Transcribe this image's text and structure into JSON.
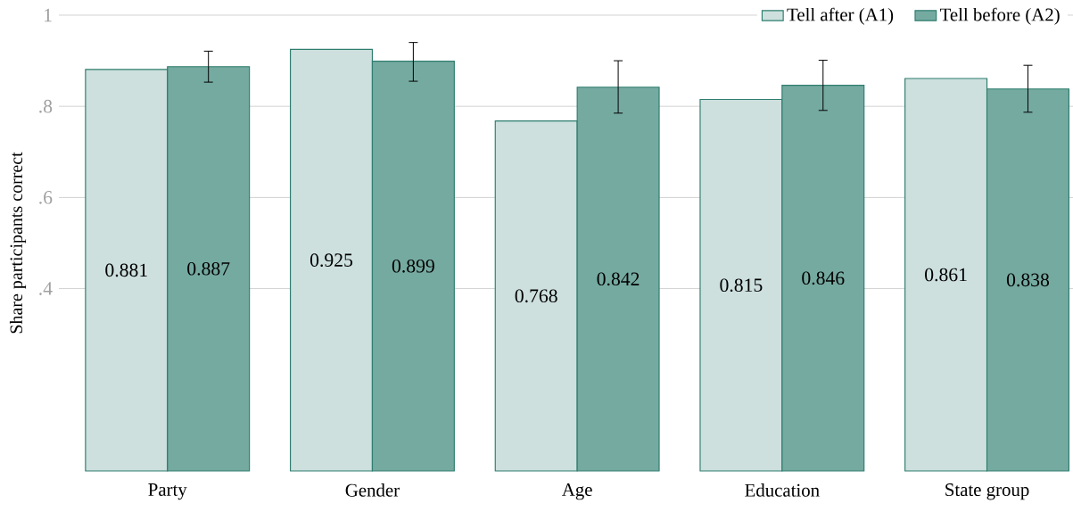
{
  "chart_data": {
    "type": "bar",
    "ylabel": "Share participants correct",
    "categories": [
      "Party",
      "Gender",
      "Age",
      "Education",
      "State group"
    ],
    "series": [
      {
        "name": "Tell after (A1)",
        "color": "#cde0de",
        "values": [
          0.881,
          0.925,
          0.768,
          0.815,
          0.861
        ],
        "value_labels": [
          "0.881",
          "0.925",
          "0.768",
          "0.815",
          "0.861"
        ]
      },
      {
        "name": "Tell before (A2)",
        "color": "#75aaa1",
        "values": [
          0.887,
          0.899,
          0.842,
          0.846,
          0.838
        ],
        "value_labels": [
          "0.887",
          "0.899",
          "0.842",
          "0.846",
          "0.838"
        ],
        "errors": [
          [
            0.853,
            0.921
          ],
          [
            0.855,
            0.94
          ],
          [
            0.785,
            0.9
          ],
          [
            0.791,
            0.901
          ],
          [
            0.787,
            0.89
          ]
        ]
      }
    ],
    "ylim": [
      0,
      1
    ],
    "yticks": [
      {
        "value": 0.4,
        "label": ".4"
      },
      {
        "value": 0.6,
        "label": ".6"
      },
      {
        "value": 0.8,
        "label": ".8"
      },
      1
    ],
    "grid": "y",
    "legend": "top right"
  }
}
